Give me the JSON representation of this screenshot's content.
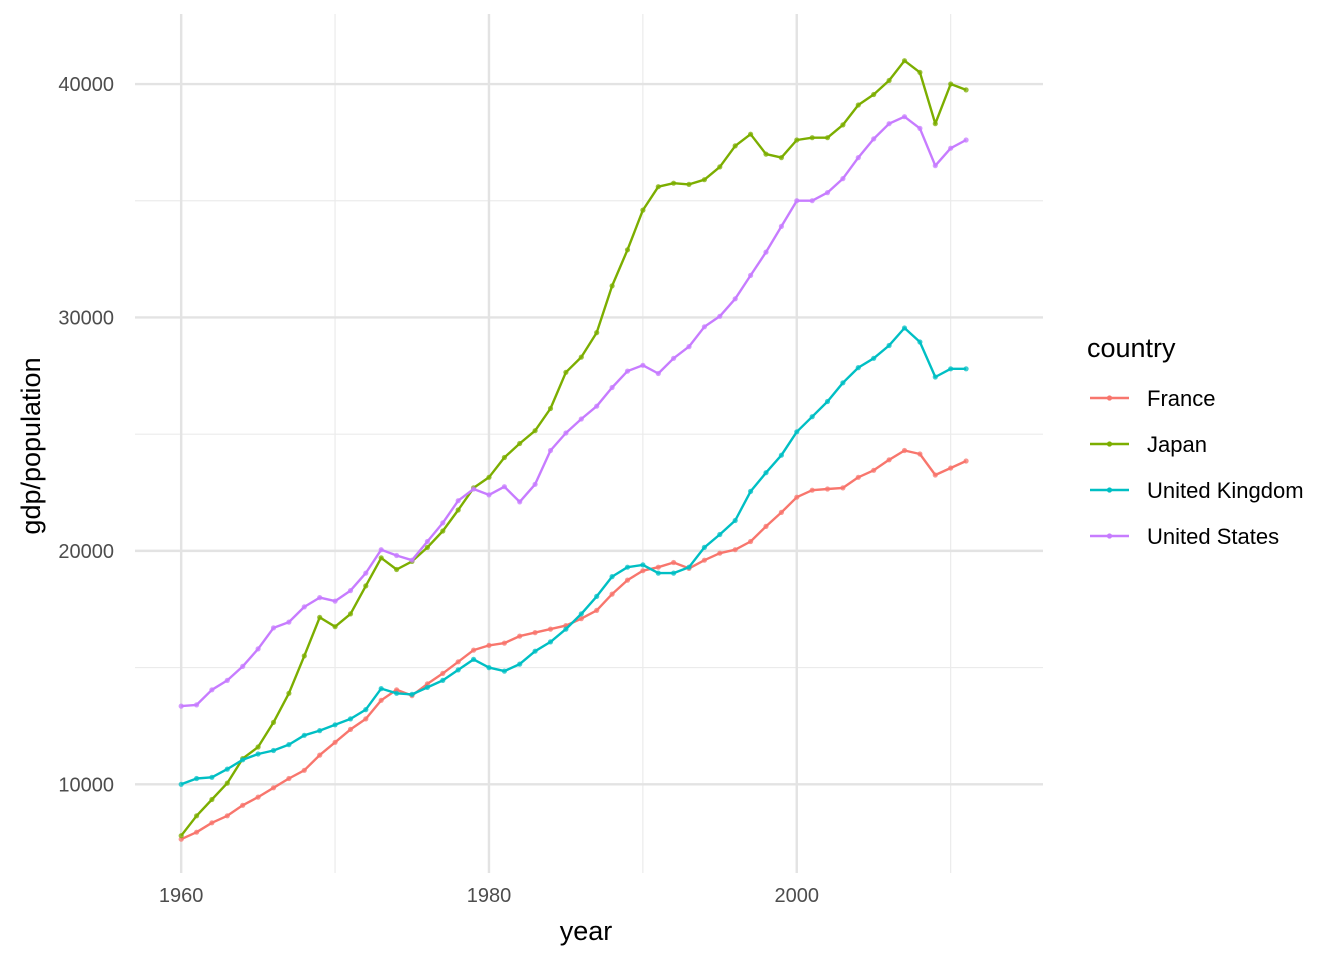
{
  "chart_data": {
    "type": "line",
    "xlabel": "year",
    "ylabel": "gdp/population",
    "xlim": [
      1957,
      2016
    ],
    "ylim": [
      6200,
      43000
    ],
    "x_ticks": [
      1960,
      1980,
      2000
    ],
    "x_tick_labels": [
      "1960",
      "1980",
      "2000"
    ],
    "x_minor_ticks": [
      1970,
      1990,
      2010
    ],
    "y_ticks": [
      10000,
      20000,
      30000,
      40000
    ],
    "y_tick_labels": [
      "10000",
      "20000",
      "30000",
      "40000"
    ],
    "y_minor_ticks": [
      15000,
      25000,
      35000
    ],
    "grid": true,
    "points": true,
    "legend": {
      "title": "country",
      "position": "right"
    },
    "series": [
      {
        "name": "France",
        "color": "#F8766D",
        "x": [
          1960,
          1961,
          1962,
          1963,
          1964,
          1965,
          1966,
          1967,
          1968,
          1969,
          1970,
          1971,
          1972,
          1973,
          1974,
          1975,
          1976,
          1977,
          1978,
          1979,
          1980,
          1981,
          1982,
          1983,
          1984,
          1985,
          1986,
          1987,
          1988,
          1989,
          1990,
          1991,
          1992,
          1993,
          1994,
          1995,
          1996,
          1997,
          1998,
          1999,
          2000,
          2001,
          2002,
          2003,
          2004,
          2005,
          2006,
          2007,
          2008,
          2009,
          2010,
          2011
        ],
        "values": [
          7650,
          7950,
          8350,
          8650,
          9100,
          9450,
          9850,
          10250,
          10600,
          11250,
          11800,
          12350,
          12800,
          13600,
          14050,
          13800,
          14300,
          14750,
          15250,
          15750,
          15950,
          16050,
          16350,
          16500,
          16650,
          16800,
          17100,
          17450,
          18150,
          18750,
          19150,
          19300,
          19500,
          19250,
          19600,
          19900,
          20050,
          20400,
          21050,
          21650,
          22300,
          22600,
          22650,
          22700,
          23150,
          23450,
          23900,
          24300,
          24150,
          23250,
          23550,
          23850
        ]
      },
      {
        "name": "Japan",
        "color": "#7CAE00",
        "x": [
          1960,
          1961,
          1962,
          1963,
          1964,
          1965,
          1966,
          1967,
          1968,
          1969,
          1970,
          1971,
          1972,
          1973,
          1974,
          1975,
          1976,
          1977,
          1978,
          1979,
          1980,
          1981,
          1982,
          1983,
          1984,
          1985,
          1986,
          1987,
          1988,
          1989,
          1990,
          1991,
          1992,
          1993,
          1994,
          1995,
          1996,
          1997,
          1998,
          1999,
          2000,
          2001,
          2002,
          2003,
          2004,
          2005,
          2006,
          2007,
          2008,
          2009,
          2010,
          2011
        ],
        "values": [
          7800,
          8650,
          9350,
          10050,
          11100,
          11600,
          12650,
          13900,
          15500,
          17150,
          16750,
          17300,
          18500,
          19700,
          19200,
          19550,
          20150,
          20850,
          21750,
          22700,
          23150,
          24000,
          24600,
          25150,
          26100,
          27650,
          28300,
          29350,
          31350,
          32900,
          34600,
          35600,
          35750,
          35700,
          35900,
          36450,
          37350,
          37850,
          37000,
          36850,
          37600,
          37700,
          37700,
          38250,
          39100,
          39550,
          40150,
          41000,
          40500,
          38300,
          40000,
          39750
        ]
      },
      {
        "name": "United Kingdom",
        "color": "#00BFC4",
        "x": [
          1960,
          1961,
          1962,
          1963,
          1964,
          1965,
          1966,
          1967,
          1968,
          1969,
          1970,
          1971,
          1972,
          1973,
          1974,
          1975,
          1976,
          1977,
          1978,
          1979,
          1980,
          1981,
          1982,
          1983,
          1984,
          1985,
          1986,
          1987,
          1988,
          1989,
          1990,
          1991,
          1992,
          1993,
          1994,
          1995,
          1996,
          1997,
          1998,
          1999,
          2000,
          2001,
          2002,
          2003,
          2004,
          2005,
          2006,
          2007,
          2008,
          2009,
          2010,
          2011
        ],
        "values": [
          10000,
          10250,
          10300,
          10650,
          11050,
          11300,
          11450,
          11700,
          12100,
          12300,
          12550,
          12800,
          13200,
          14100,
          13900,
          13850,
          14150,
          14450,
          14900,
          15350,
          15000,
          14850,
          15150,
          15700,
          16100,
          16650,
          17300,
          18050,
          18900,
          19300,
          19400,
          19050,
          19050,
          19300,
          20150,
          20700,
          21300,
          22550,
          23350,
          24100,
          25100,
          25750,
          26400,
          27200,
          27850,
          28250,
          28800,
          29550,
          28950,
          27450,
          27800,
          27800
        ]
      },
      {
        "name": "United States",
        "color": "#C77CFF",
        "x": [
          1960,
          1961,
          1962,
          1963,
          1964,
          1965,
          1966,
          1967,
          1968,
          1969,
          1970,
          1971,
          1972,
          1973,
          1974,
          1975,
          1976,
          1977,
          1978,
          1979,
          1980,
          1981,
          1982,
          1983,
          1984,
          1985,
          1986,
          1987,
          1988,
          1989,
          1990,
          1991,
          1992,
          1993,
          1994,
          1995,
          1996,
          1997,
          1998,
          1999,
          2000,
          2001,
          2002,
          2003,
          2004,
          2005,
          2006,
          2007,
          2008,
          2009,
          2010,
          2011
        ],
        "values": [
          13350,
          13400,
          14050,
          14450,
          15050,
          15800,
          16700,
          16950,
          17600,
          18000,
          17850,
          18300,
          19050,
          20050,
          19800,
          19600,
          20400,
          21200,
          22150,
          22650,
          22400,
          22750,
          22100,
          22850,
          24300,
          25050,
          25650,
          26200,
          27000,
          27700,
          27950,
          27600,
          28250,
          28750,
          29600,
          30050,
          30800,
          31800,
          32800,
          33900,
          35000,
          35000,
          35350,
          35950,
          36850,
          37650,
          38300,
          38600,
          38100,
          36500,
          37250,
          37600
        ]
      }
    ]
  }
}
